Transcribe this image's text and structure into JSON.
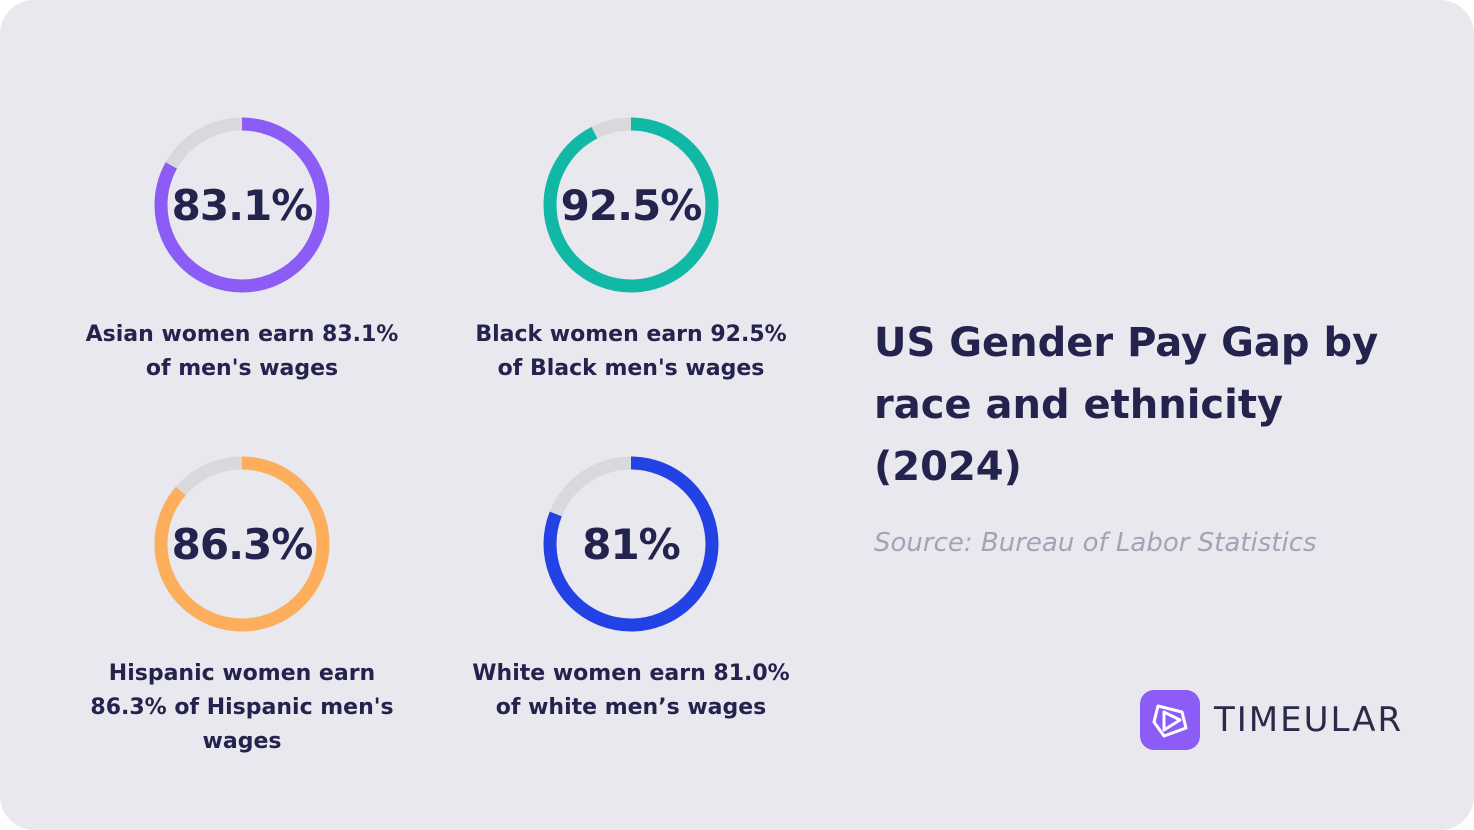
{
  "chart_data": {
    "type": "pie",
    "title": "US Gender Pay Gap by race and ethnicity (2024)",
    "source": "Source: Bureau of Labor Statistics",
    "items": [
      {
        "value": 83.1,
        "label": "83.1%",
        "caption": "Asian women earn 83.1% of men's wages",
        "color": "#8b5cf6"
      },
      {
        "value": 92.5,
        "label": "92.5%",
        "caption": "Black women earn 92.5% of Black men's wages",
        "color": "#12b8a6"
      },
      {
        "value": 86.3,
        "label": "86.3%",
        "caption": "Hispanic women earn 86.3% of Hispanic men's wages",
        "color": "#fdae5c"
      },
      {
        "value": 81.0,
        "label": "81%",
        "caption": "White women earn 81.0% of white men’s wages",
        "color": "#2342e6"
      }
    ],
    "track_color": "#d9d9dc"
  },
  "brand": {
    "name": "TIMEULAR",
    "color": "#8b5cf6"
  }
}
